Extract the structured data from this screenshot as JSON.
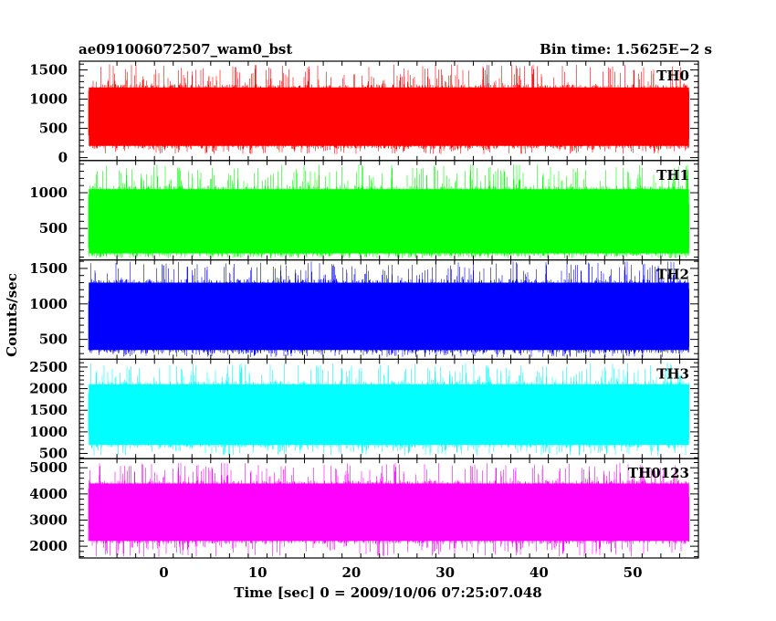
{
  "header": {
    "title": "ae091006072507_wam0_bst",
    "bin_time": "Bin time: 1.5625E−2 s"
  },
  "axes": {
    "ylabel": "Counts/sec",
    "xlabel": "Time [sec] 0 = 2009/10/06 07:25:07.048"
  },
  "colors": {
    "TH0": "#ff0000",
    "TH1": "#00ff00",
    "TH2": "#0000ff",
    "TH3": "#00ffff",
    "TH0123": "#ff00ff",
    "axis": "#000000"
  },
  "chart_data": {
    "type": "line",
    "title": "ae091006072507_wam0_bst",
    "annotation": "Bin time: 1.5625E−2 s",
    "xlabel": "Time [sec] 0 = 2009/10/06 07:25:07.048",
    "ylabel": "Counts/sec",
    "xlim": [
      -9,
      57
    ],
    "x_data_range": [
      -8,
      56
    ],
    "x_ticks": [
      0,
      10,
      20,
      30,
      40,
      50
    ],
    "x_tick_labels": [
      "0",
      "10",
      "20",
      "30",
      "40",
      "50"
    ],
    "panels": [
      {
        "name": "TH0",
        "color": "#ff0000",
        "ylim": [
          -50,
          1650
        ],
        "y_ticks": [
          0,
          500,
          1000,
          1500
        ],
        "y_tick_labels": [
          "0",
          "500",
          "1000",
          "1500"
        ],
        "typical_low": 200,
        "typical_high": 1200,
        "min": 60,
        "max": 1600,
        "mean": 700
      },
      {
        "name": "TH1",
        "color": "#00ff00",
        "ylim": [
          60,
          1450
        ],
        "y_ticks": [
          500,
          1000
        ],
        "y_tick_labels": [
          "500",
          "1000"
        ],
        "typical_low": 150,
        "typical_high": 1050,
        "min": 80,
        "max": 1400,
        "mean": 580
      },
      {
        "name": "TH2",
        "color": "#0000ff",
        "ylim": [
          220,
          1620
        ],
        "y_ticks": [
          500,
          1000,
          1500
        ],
        "y_tick_labels": [
          "500",
          "1000",
          "1500"
        ],
        "typical_low": 350,
        "typical_high": 1300,
        "min": 250,
        "max": 1600,
        "mean": 800
      },
      {
        "name": "TH3",
        "color": "#00ffff",
        "ylim": [
          380,
          2680
        ],
        "y_ticks": [
          500,
          1000,
          1500,
          2000,
          2500
        ],
        "y_tick_labels": [
          "500",
          "1000",
          "1500",
          "2000",
          "2500"
        ],
        "typical_low": 700,
        "typical_high": 2100,
        "min": 450,
        "max": 2600,
        "mean": 1350
      },
      {
        "name": "TH0123",
        "color": "#ff00ff",
        "ylim": [
          1550,
          5350
        ],
        "y_ticks": [
          2000,
          3000,
          4000,
          5000
        ],
        "y_tick_labels": [
          "2000",
          "3000",
          "4000",
          "5000"
        ],
        "typical_low": 2200,
        "typical_high": 4400,
        "min": 1600,
        "max": 5200,
        "mean": 3200
      }
    ]
  }
}
